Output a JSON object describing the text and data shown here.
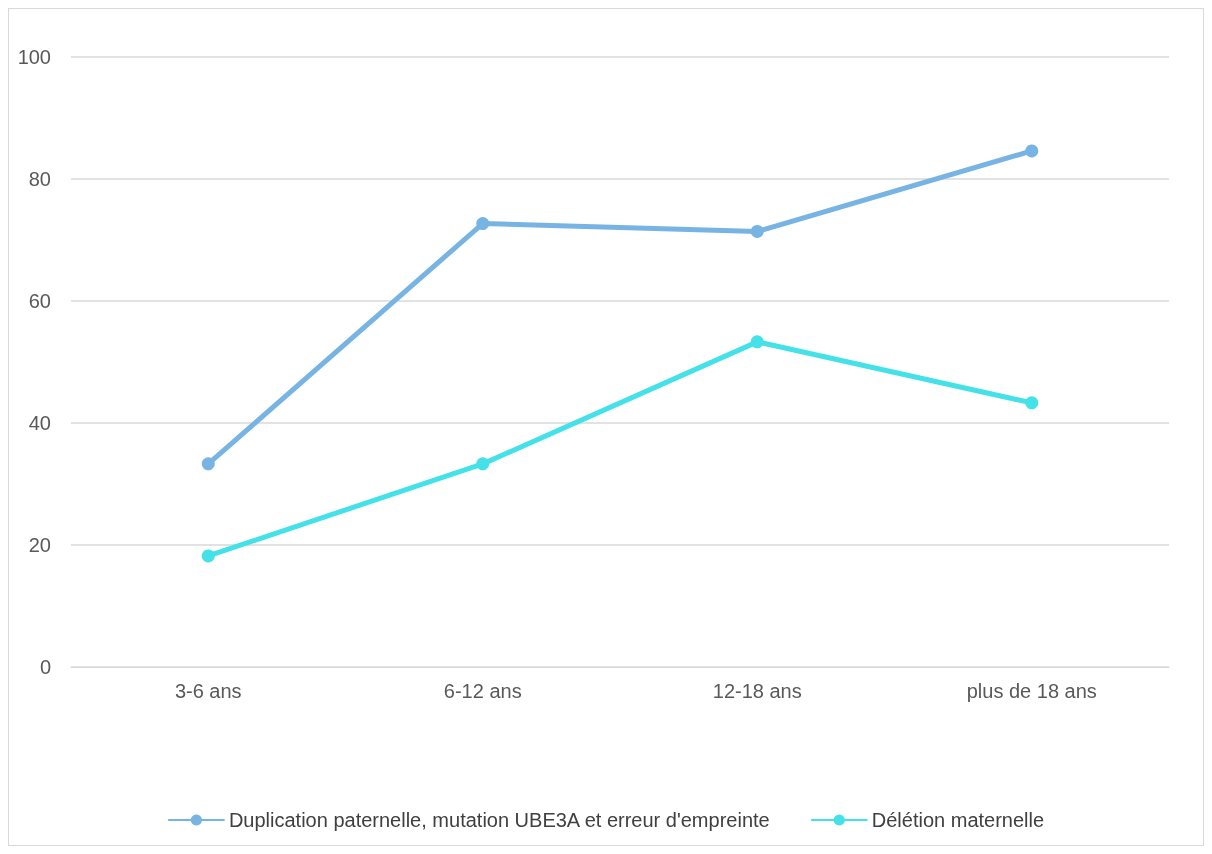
{
  "chart_data": {
    "type": "line",
    "categories": [
      "3-6 ans",
      "6-12 ans",
      "12-18 ans",
      "plus de 18 ans"
    ],
    "series": [
      {
        "name": "Duplication paternelle, mutation UBE3A et erreur d'empreinte",
        "color": "#77b4e3",
        "values": [
          33.3,
          72.7,
          71.4,
          84.6
        ]
      },
      {
        "name": "Délétion maternelle",
        "color": "#44e1e8",
        "values": [
          18.2,
          33.3,
          53.3,
          43.3
        ]
      }
    ],
    "ylim": [
      0,
      100
    ],
    "yticks": [
      0,
      20,
      40,
      60,
      80,
      100
    ],
    "grid": "y",
    "legend": "bottom",
    "marker": "circle",
    "line_style": "solid"
  }
}
